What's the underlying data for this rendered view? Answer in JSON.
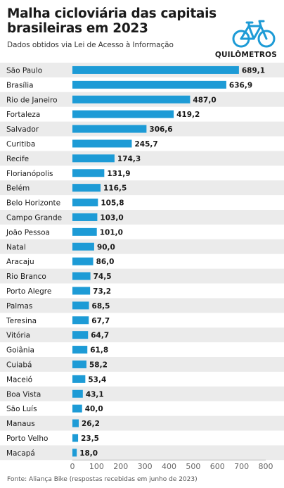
{
  "header": {
    "title": "Malha cicloviária das capitais brasileiras em 2023",
    "subtitle": "Dados obtidos via Lei de Acesso à Informação",
    "unit_label": "QUILÔMETROS"
  },
  "footer": {
    "source": "Fonte: Aliança Bike (respostas recebidas em junho de 2023)"
  },
  "icons": {
    "bike": "bicycle-icon"
  },
  "colors": {
    "bar": "#1d9bd6",
    "row_alt": "#ebebeb",
    "icon": "#1d9bd6"
  },
  "chart_data": {
    "type": "bar",
    "orientation": "horizontal",
    "categories": [
      "São Paulo",
      "Brasília",
      "Rio de Janeiro",
      "Fortaleza",
      "Salvador",
      "Curitiba",
      "Recife",
      "Florianópolis",
      "Belém",
      "Belo Horizonte",
      "Campo Grande",
      "João Pessoa",
      "Natal",
      "Aracaju",
      "Rio Branco",
      "Porto Alegre",
      "Palmas",
      "Teresina",
      "Vitória",
      "Goiânia",
      "Cuiabá",
      "Maceió",
      "Boa Vista",
      "São Luís",
      "Manaus",
      "Porto Velho",
      "Macapá"
    ],
    "values": [
      689.1,
      636.9,
      487.0,
      419.2,
      306.6,
      245.7,
      174.3,
      131.9,
      116.5,
      105.8,
      103.0,
      101.0,
      90.0,
      86.0,
      74.5,
      73.2,
      68.5,
      67.7,
      64.7,
      61.8,
      58.2,
      53.4,
      43.1,
      40.0,
      26.2,
      23.5,
      18.0
    ],
    "value_labels": [
      "689,1",
      "636,9",
      "487,0",
      "419,2",
      "306,6",
      "245,7",
      "174,3",
      "131,9",
      "116,5",
      "105,8",
      "103,0",
      "101,0",
      "90,0",
      "86,0",
      "74,5",
      "73,2",
      "68,5",
      "67,7",
      "64,7",
      "61,8",
      "58,2",
      "53,4",
      "43,1",
      "40,0",
      "26,2",
      "23,5",
      "18,0"
    ],
    "xlim": [
      0,
      800
    ],
    "xticks": [
      0,
      100,
      200,
      300,
      400,
      500,
      600,
      700,
      800
    ],
    "xlabel": "",
    "ylabel": "",
    "grid": false
  }
}
